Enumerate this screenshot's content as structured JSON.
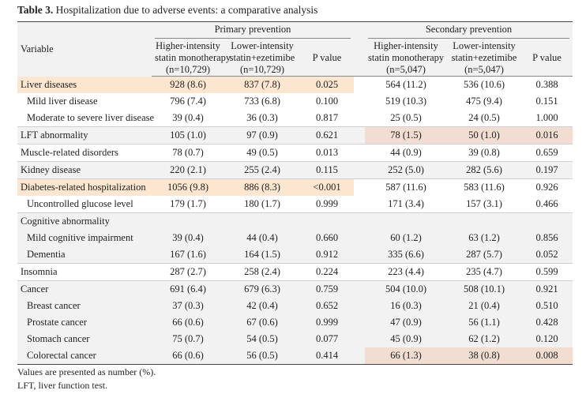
{
  "title": {
    "label": "Table 3.",
    "text": "Hospitalization due to adverse events: a comparative analysis"
  },
  "header": {
    "variable": "Variable",
    "groups": [
      "Primary prevention",
      "Secondary prevention"
    ],
    "columns": [
      [
        "Higher-intensity",
        "statin monotherapy",
        "(n=10,729)"
      ],
      [
        "Lower-intensity",
        "statin+ezetimibe",
        "(n=10,729)"
      ],
      [
        "P value"
      ],
      [
        "Higher-intensity",
        "statin monotherapy",
        "(n=5,047)"
      ],
      [
        "Lower-intensity",
        "statin+ezetimibe",
        "(n=5,047)"
      ],
      [
        "P value"
      ]
    ]
  },
  "body": [
    {
      "label": "Liver diseases",
      "values": [
        "928 (8.6)",
        "837 (7.8)",
        "0.025",
        "564 (11.2)",
        "536 (10.6)",
        "0.388"
      ],
      "rows": [
        {
          "label": "Mild liver disease",
          "values": [
            "796 (7.4)",
            "733 (6.8)",
            "0.100",
            "519 (10.3)",
            "475 (9.4)",
            "0.151"
          ]
        },
        {
          "label": "Moderate to severe liver disease",
          "values": [
            "39 (0.4)",
            "36 (0.3)",
            "0.817",
            "25 (0.5)",
            "24 (0.5)",
            "1.000"
          ]
        }
      ]
    },
    {
      "label": "LFT abnormality",
      "values": [
        "105 (1.0)",
        "97 (0.9)",
        "0.621",
        "78 (1.5)",
        "50 (1.0)",
        "0.016"
      ],
      "rows": []
    },
    {
      "label": "Muscle-related disorders",
      "values": [
        "78 (0.7)",
        "49 (0.5)",
        "0.013",
        "44 (0.9)",
        "39 (0.8)",
        "0.659"
      ],
      "rows": []
    },
    {
      "label": "Kidney disease",
      "values": [
        "220 (2.1)",
        "255 (2.4)",
        "0.115",
        "252 (5.0)",
        "282 (5.6)",
        "0.197"
      ],
      "rows": []
    },
    {
      "label": "Diabetes-related hospitalization",
      "values": [
        "1056 (9.8)",
        "886 (8.3)",
        "<0.001",
        "587 (11.6)",
        "583 (11.6)",
        "0.926"
      ],
      "rows": [
        {
          "label": "Uncontrolled glucose level",
          "values": [
            "179 (1.7)",
            "180 (1.7)",
            "0.999",
            "171 (3.4)",
            "157 (3.1)",
            "0.466"
          ]
        }
      ]
    },
    {
      "label": "Cognitive abnormality",
      "rows": [
        {
          "label": "Mild cognitive impairment",
          "values": [
            "39 (0.4)",
            "44 (0.4)",
            "0.660",
            "60 (1.2)",
            "63 (1.2)",
            "0.856"
          ]
        },
        {
          "label": "Dementia",
          "values": [
            "167 (1.6)",
            "164 (1.5)",
            "0.912",
            "335 (6.6)",
            "287 (5.7)",
            "0.052"
          ]
        }
      ]
    },
    {
      "label": "Insomnia",
      "values": [
        "287 (2.7)",
        "258 (2.4)",
        "0.224",
        "223 (4.4)",
        "235 (4.7)",
        "0.599"
      ],
      "rows": []
    },
    {
      "label": "Cancer",
      "values": [
        "691 (6.4)",
        "679 (6.3)",
        "0.759",
        "504 (10.0)",
        "508 (10.1)",
        "0.921"
      ],
      "rows": [
        {
          "label": "Breast cancer",
          "values": [
            "37 (0.3)",
            "42 (0.4)",
            "0.652",
            "16 (0.3)",
            "21 (0.4)",
            "0.510"
          ]
        },
        {
          "label": "Prostate cancer",
          "values": [
            "66 (0.6)",
            "67 (0.6)",
            "0.999",
            "47 (0.9)",
            "56 (1.1)",
            "0.428"
          ]
        },
        {
          "label": "Stomach cancer",
          "values": [
            "75 (0.7)",
            "54 (0.5)",
            "0.077",
            "45 (0.9)",
            "62 (1.2)",
            "0.120"
          ]
        },
        {
          "label": "Colorectal cancer",
          "values": [
            "66 (0.6)",
            "56 (0.5)",
            "0.414",
            "66 (1.3)",
            "38 (0.8)",
            "0.008"
          ]
        }
      ]
    }
  ],
  "footnotes": [
    "Values are presented as number (%).",
    "LFT, liver function test."
  ]
}
